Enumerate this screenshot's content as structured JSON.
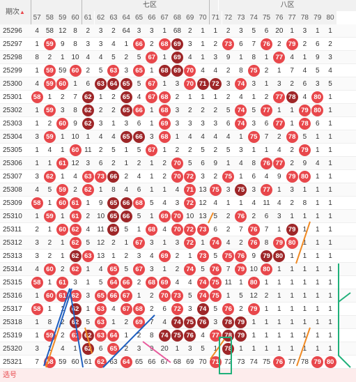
{
  "header": {
    "period_label": "期次",
    "zone7": "七区",
    "zone8": "八区",
    "sort_icon": "sort-arrows-icon"
  },
  "columns": [
    "57",
    "58",
    "59",
    "60",
    "61",
    "62",
    "63",
    "64",
    "65",
    "66",
    "67",
    "68",
    "69",
    "70",
    "71",
    "72",
    "73",
    "74",
    "75",
    "76",
    "77",
    "78",
    "79",
    "80"
  ],
  "periods": [
    "25296",
    "25297",
    "25298",
    "25299",
    "25300",
    "25301",
    "25302",
    "25303",
    "25304",
    "25305",
    "25306",
    "25307",
    "25308",
    "25309",
    "25310",
    "25311",
    "25312",
    "25313",
    "25314",
    "25315",
    "25316",
    "25317",
    "25318",
    "25319",
    "25320",
    "25321"
  ],
  "rows": [
    [
      "4",
      "58",
      "12",
      "8",
      "2",
      "3",
      "2",
      "64",
      "3",
      "3",
      "1",
      "68",
      "2",
      "1",
      "1",
      "2",
      "3",
      "5",
      "6",
      "20",
      "1",
      "3",
      "1",
      "1"
    ],
    [
      "1",
      "59:r",
      "9",
      "8",
      "3",
      "3",
      "4",
      "1",
      "66:r",
      "2",
      "68:r",
      "69:d",
      "3",
      "1",
      "2",
      "73:r",
      "6",
      "7",
      "76:r",
      "2",
      "79:r",
      "2",
      "6",
      "2"
    ],
    [
      "8",
      "2",
      "1",
      "10",
      "4",
      "4",
      "5",
      "2",
      "5",
      "67:r",
      "1",
      "69:d",
      "4",
      "1",
      "3",
      "9",
      "1",
      "8",
      "1",
      "77:r",
      "4",
      "1",
      "9",
      "3"
    ],
    [
      "1",
      "59:r",
      "59",
      "60:r",
      "2",
      "5",
      "63:r",
      "3",
      "65:r",
      "1",
      "68:d",
      "69:d",
      "70:r",
      "4",
      "4",
      "2",
      "8",
      "75:r",
      "2",
      "1",
      "7",
      "4",
      "5",
      "4"
    ],
    [
      "4",
      "59:r",
      "60:r",
      "1",
      "6",
      "63:d",
      "64:d",
      "65:d",
      "5",
      "67:r",
      "1",
      "3",
      "70:r",
      "71:d",
      "72:d",
      "3",
      "74:r",
      "3",
      "1",
      "3",
      "2",
      "6",
      "3",
      "5"
    ],
    [
      "58:r",
      "1",
      "2",
      "7",
      "62:d",
      "1",
      "2",
      "65:d",
      "4",
      "67:r",
      "68:r",
      "2",
      "1",
      "1",
      "1",
      "2",
      "4",
      "1",
      "2",
      "77:r",
      "78:d",
      "4",
      "80:r",
      "1"
    ],
    [
      "1",
      "59:r",
      "3",
      "8",
      "62:d",
      "2",
      "2",
      "65:d",
      "66:r",
      "1",
      "68:r",
      "3",
      "2",
      "2",
      "2",
      "5",
      "74:r",
      "5",
      "77:r",
      "1",
      "1",
      "79:r",
      "80:r",
      "1"
    ],
    [
      "1",
      "2",
      "60:r",
      "9",
      "62:d",
      "3",
      "1",
      "3",
      "6",
      "1",
      "69:r",
      "3",
      "3",
      "3",
      "3",
      "6",
      "74:r",
      "3",
      "6",
      "77:r",
      "1",
      "78:r",
      "6",
      "1"
    ],
    [
      "3",
      "59:r",
      "1",
      "10",
      "1",
      "4",
      "4",
      "65:d",
      "66:d",
      "3",
      "68:r",
      "1",
      "4",
      "4",
      "4",
      "4",
      "1",
      "75:r",
      "7",
      "2",
      "78:r",
      "5",
      "1",
      "1"
    ],
    [
      "1",
      "4",
      "1",
      "60:r",
      "11",
      "2",
      "5",
      "1",
      "5",
      "67:r",
      "1",
      "2",
      "2",
      "5",
      "2",
      "5",
      "3",
      "1",
      "1",
      "4",
      "2",
      "79:r",
      "1",
      "1"
    ],
    [
      "1",
      "1",
      "61:r",
      "12",
      "3",
      "6",
      "2",
      "1",
      "2",
      "1",
      "2",
      "70:r",
      "5",
      "6",
      "9",
      "1",
      "4",
      "8",
      "76:r",
      "77:r",
      "2",
      "9",
      "4",
      "1"
    ],
    [
      "3",
      "62:r",
      "1",
      "4",
      "63:r",
      "73:r",
      "66:d",
      "2",
      "4",
      "1",
      "2",
      "70:r",
      "72:r",
      "3",
      "2",
      "75:r",
      "1",
      "6",
      "4",
      "9",
      "79:r",
      "80:r",
      "1",
      "1"
    ],
    [
      "4",
      "5",
      "59:r",
      "2",
      "62:r",
      "1",
      "8",
      "4",
      "6",
      "1",
      "1",
      "4",
      "71:r",
      "13",
      "75:r",
      "3",
      "75:d",
      "3",
      "77:r",
      "1",
      "3",
      "1",
      "1",
      "1"
    ],
    [
      "58:r",
      "1",
      "60:r",
      "61:r",
      "1",
      "9",
      "65:d",
      "66:d",
      "68:r",
      "5",
      "4",
      "3",
      "72:r",
      "12",
      "4",
      "1",
      "1",
      "4",
      "11",
      "4",
      "2",
      "8",
      "1",
      "1"
    ],
    [
      "1",
      "59:r",
      "1",
      "61:r",
      "2",
      "10",
      "65:d",
      "66:d",
      "5",
      "1",
      "69:r",
      "70:r",
      "10",
      "13",
      "5",
      "2",
      "76:r",
      "2",
      "6",
      "3",
      "1",
      "1",
      "1",
      "1"
    ],
    [
      "2",
      "1",
      "60:r",
      "62:r",
      "4",
      "11",
      "65:d",
      "5",
      "1",
      "68:r",
      "4",
      "70:r",
      "72:r",
      "73:r",
      "6",
      "2",
      "7",
      "76:r",
      "7",
      "1",
      "79:d",
      "1",
      "1",
      "1"
    ],
    [
      "3",
      "2",
      "1",
      "62:r",
      "5",
      "12",
      "2",
      "1",
      "67:r",
      "3",
      "1",
      "3",
      "72:r",
      "1",
      "74:r",
      "4",
      "2",
      "76:r",
      "8",
      "79:r",
      "80:r",
      "1",
      "1",
      "1"
    ],
    [
      "3",
      "2",
      "1",
      "62:d",
      "63:r",
      "13",
      "1",
      "2",
      "3",
      "4",
      "69:r",
      "2",
      "1",
      "73:r",
      "5",
      "75:r",
      "76:r",
      "9",
      "79:d",
      "80:d",
      "1",
      "1",
      "1",
      "1"
    ],
    [
      "4",
      "60:r",
      "2",
      "62:r",
      "1",
      "4",
      "65:r",
      "5",
      "67:r",
      "3",
      "1",
      "2",
      "74:r",
      "5",
      "76:r",
      "7",
      "79:r",
      "10",
      "80:r",
      "1",
      "1",
      "1",
      "1",
      "1"
    ],
    [
      "58:r",
      "1",
      "61:r",
      "3",
      "1",
      "5",
      "64:r",
      "66:r",
      "2",
      "68:r",
      "69:r",
      "4",
      "4",
      "74:r",
      "75:r",
      "11",
      "1",
      "80:r",
      "1",
      "1",
      "1",
      "1",
      "1",
      "1"
    ],
    [
      "1",
      "60:r",
      "61:r",
      "62:r",
      "3",
      "65:r",
      "66:r",
      "67:r",
      "1",
      "2",
      "70:r",
      "73:r",
      "5",
      "74:r",
      "75:r",
      "1",
      "5",
      "12",
      "2",
      "1",
      "1",
      "1",
      "1",
      "1"
    ],
    [
      "58:r",
      "1",
      "1",
      "62:d",
      "1",
      "63:r",
      "4",
      "67:r",
      "68:r",
      "2",
      "6",
      "72:r",
      "3",
      "74:d",
      "5",
      "76:r",
      "2",
      "79:r",
      "1",
      "1",
      "1",
      "1",
      "1",
      "1"
    ],
    [
      "1",
      "8",
      "2",
      "62:d",
      "5",
      "63:r",
      "1",
      "2",
      "69:r",
      "7",
      "4",
      "74:d",
      "75:d",
      "76:d",
      "3",
      "78:d",
      "79:d",
      "1",
      "1",
      "1",
      "1",
      "1",
      "1",
      "1"
    ],
    [
      "1",
      "59:r",
      "2",
      "61:r",
      "62:d",
      "63:r",
      "64:r",
      "1",
      "2",
      "8",
      "74:d",
      "75:d",
      "76:d",
      "4",
      "77:r",
      "78:d",
      "79:d",
      "1",
      "1",
      "1",
      "1",
      "1",
      "1",
      "1"
    ],
    [
      "3",
      "1",
      "4",
      "1",
      "62:d",
      "6",
      "65:r",
      "2",
      "3",
      "9",
      "20",
      "1",
      "3",
      "5",
      "1",
      "78:d",
      "1",
      "1",
      "1",
      "1",
      "1",
      "1",
      "1",
      "1"
    ],
    [
      "7",
      "58:r",
      "59",
      "60",
      "61",
      "62:r",
      "63",
      "64:r",
      "65",
      "66",
      "67",
      "68",
      "69",
      "70",
      "71:r",
      "72",
      "73",
      "74",
      "75",
      "76:r",
      "77",
      "78",
      "79:r",
      "80:r"
    ]
  ],
  "bottom_label": "选号"
}
